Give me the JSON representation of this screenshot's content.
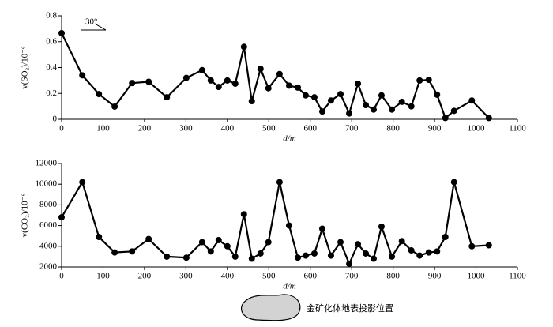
{
  "chart_data": [
    {
      "type": "line",
      "ylabel": "v(SO₂)/10⁻⁶",
      "xlabel": "d/m",
      "annotation": "30°",
      "x": [
        0,
        50,
        90,
        128,
        170,
        210,
        254,
        301,
        339,
        360,
        379,
        400,
        419,
        440,
        459,
        480,
        499,
        526,
        549,
        570,
        589,
        610,
        629,
        650,
        673,
        694,
        715,
        734,
        753,
        772,
        797,
        821,
        844,
        864,
        886,
        906,
        926,
        947,
        990,
        1031
      ],
      "series": [
        {
          "color": "#000000",
          "values": [
            0.666,
            0.34,
            0.195,
            0.098,
            0.28,
            0.29,
            0.17,
            0.32,
            0.38,
            0.3,
            0.25,
            0.3,
            0.275,
            0.56,
            0.14,
            0.39,
            0.24,
            0.35,
            0.26,
            0.245,
            0.185,
            0.17,
            0.06,
            0.145,
            0.195,
            0.045,
            0.275,
            0.11,
            0.075,
            0.185,
            0.075,
            0.135,
            0.1,
            0.3,
            0.305,
            0.19,
            0.01,
            0.065,
            0.145,
            0.01
          ]
        }
      ],
      "xlim": [
        0,
        1100
      ],
      "xticks": [
        0,
        100,
        200,
        300,
        400,
        500,
        600,
        700,
        800,
        900,
        1000,
        1100
      ],
      "ylim": [
        0,
        0.8
      ],
      "yticks": [
        0,
        0.2,
        0.4,
        0.6,
        0.8
      ]
    },
    {
      "type": "line",
      "ylabel": "v(CO₂)/10⁻⁶",
      "xlabel": "d/m",
      "x": [
        0,
        50,
        90,
        128,
        170,
        210,
        254,
        301,
        339,
        360,
        379,
        400,
        419,
        440,
        459,
        480,
        499,
        526,
        549,
        570,
        589,
        610,
        629,
        650,
        673,
        694,
        715,
        734,
        753,
        772,
        797,
        821,
        844,
        864,
        886,
        906,
        926,
        947,
        990,
        1031
      ],
      "series": [
        {
          "color": "#000000",
          "values": [
            6800,
            10200,
            4900,
            3400,
            3500,
            4700,
            3000,
            2900,
            4400,
            3500,
            4600,
            4000,
            3000,
            7100,
            2800,
            3300,
            4400,
            10200,
            6000,
            2900,
            3100,
            3300,
            5700,
            3100,
            4400,
            2300,
            4200,
            3300,
            2800,
            5900,
            3000,
            4500,
            3600,
            3100,
            3400,
            3500,
            4900,
            10200,
            4000,
            4100
          ]
        }
      ],
      "xlim": [
        0,
        1100
      ],
      "xticks": [
        0,
        100,
        200,
        300,
        400,
        500,
        600,
        700,
        800,
        900,
        1000,
        1100
      ],
      "ylim": [
        2000,
        12000
      ],
      "yticks": [
        2000,
        4000,
        6000,
        8000,
        10000,
        12000
      ]
    }
  ],
  "legend_label": "金矿化体地表投影位置"
}
